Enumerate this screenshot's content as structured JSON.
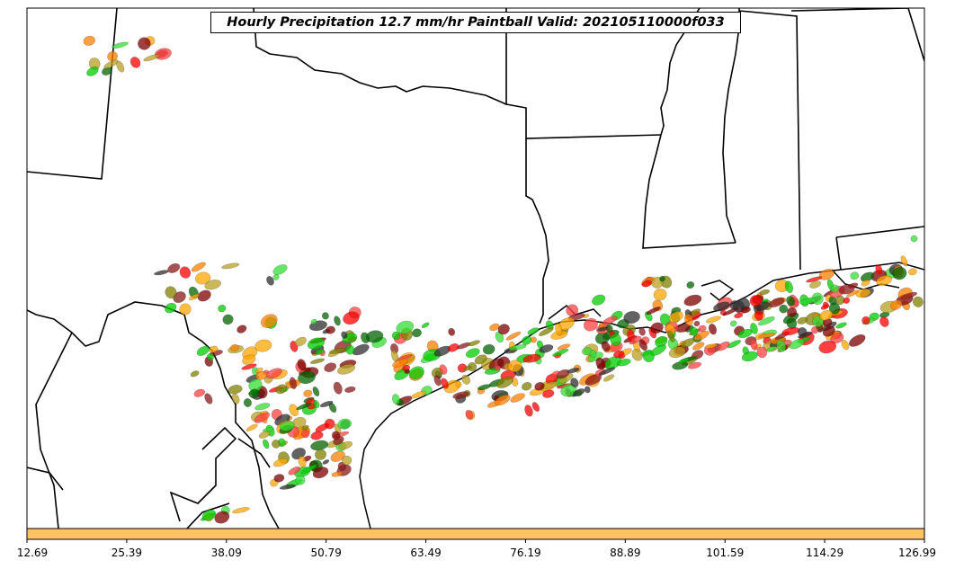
{
  "map": {
    "title": "Hourly Precipitation 12.7 mm/hr Paintball Valid: 202105110000f033"
  },
  "colorbar": {
    "fill_color": "#ffc266",
    "tick_labels": [
      "12.69",
      "25.39",
      "38.09",
      "50.79",
      "63.49",
      "76.19",
      "88.89",
      "101.59",
      "114.29",
      "126.99"
    ]
  },
  "paintball_colors": [
    "#ff0000",
    "#ff7f00",
    "#ffa500",
    "#00cc00",
    "#33dd33",
    "#006400",
    "#7f0000",
    "#8b1a1a",
    "#808000",
    "#b8a020",
    "#2f2f2f",
    "#ff4040"
  ]
}
